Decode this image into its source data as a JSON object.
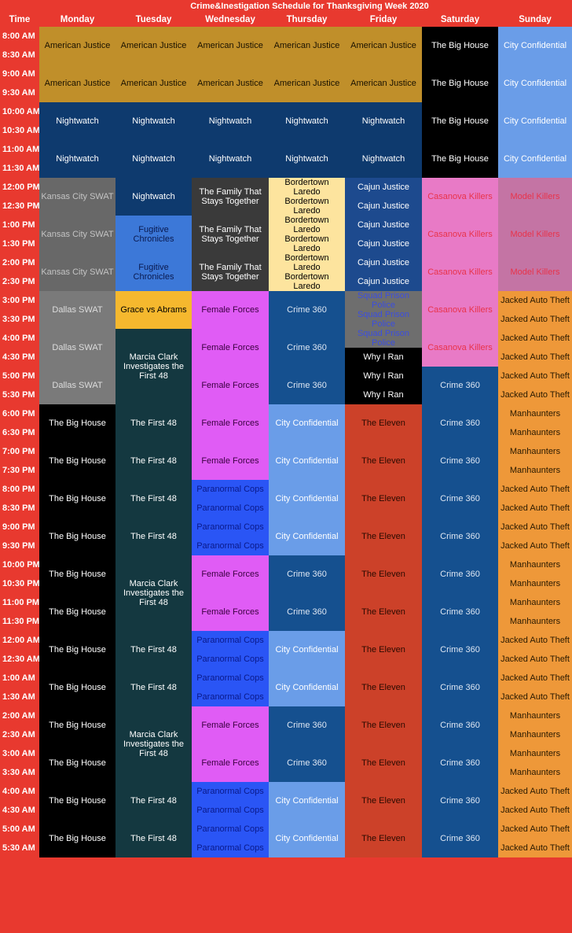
{
  "title": "Crime&Inestigation Schedule for Thanksgiving Week 2020",
  "headers": [
    "Time",
    "Monday",
    "Tuesday",
    "Wednesday",
    "Thursday",
    "Friday",
    "Saturday",
    "Sunday"
  ],
  "times": [
    "8:00 AM",
    "8:30 AM",
    "9:00 AM",
    "9:30 AM",
    "10:00 AM",
    "10:30 AM",
    "11:00 AM",
    "11:30 AM",
    "12:00 PM",
    "12:30 PM",
    "1:00 PM",
    "1:30 PM",
    "2:00 PM",
    "2:30 PM",
    "3:00 PM",
    "3:30 PM",
    "4:00 PM",
    "4:30 PM",
    "5:00 PM",
    "5:30 PM",
    "6:00 PM",
    "6:30 PM",
    "7:00 PM",
    "7:30 PM",
    "8:00 PM",
    "8:30 PM",
    "9:00 PM",
    "9:30 PM",
    "10:00 PM",
    "10:30 PM",
    "11:00 PM",
    "11:30 PM",
    "12:00 AM",
    "12:30 AM",
    "1:00 AM",
    "1:30 AM",
    "2:00 AM",
    "2:30 AM",
    "3:00 AM",
    "3:30 AM",
    "4:00 AM",
    "4:30 AM",
    "5:00 AM",
    "5:30 AM"
  ],
  "colors": {
    "header_bg": "#e8392f",
    "gold": [
      "#c08f2a",
      "#1a1200"
    ],
    "navy": [
      "#0e3a6e",
      "#ffffff"
    ],
    "kc": [
      "#686868",
      "#c4c4c4"
    ],
    "dallas": [
      "#7a7a7a",
      "#dddddd"
    ],
    "black": [
      "#000000",
      "#ffffff"
    ],
    "teal": [
      "#143840",
      "#ffffff"
    ],
    "fugitive": [
      "#3c78d8",
      "#0a1a50"
    ],
    "grace": [
      "#f5b82e",
      "#000000"
    ],
    "family": [
      "#3a3a3a",
      "#ffffff"
    ],
    "female": [
      "#e05cf5",
      "#3a0040"
    ],
    "paranormal": [
      "#2a55f5",
      "#0a1a8a"
    ],
    "bordertown": [
      "#fde49e",
      "#000000"
    ],
    "crime360": [
      "#15508f",
      "#dde6f2"
    ],
    "cityconf": [
      "#6a9de8",
      "#ffffff"
    ],
    "cajun": [
      "#1d4a8e",
      "#ffffff"
    ],
    "squad": [
      "#6e6e6e",
      "#3b4ee0"
    ],
    "why": [
      "#000000",
      "#ffffff"
    ],
    "eleven": [
      "#cc4129",
      "#2a0a00"
    ],
    "casanova": [
      "#e87ac6",
      "#e8334a"
    ],
    "model": [
      "#c474a4",
      "#e8334a"
    ],
    "jacked": [
      "#ee9839",
      "#2a1a00"
    ]
  },
  "days": [
    {
      "day": "Monday",
      "blocks": [
        {
          "c": "gold",
          "half_hours": 4,
          "shows": [
            "American Justice",
            "American Justice"
          ]
        },
        {
          "c": "navy",
          "half_hours": 4,
          "shows": [
            "Nightwatch",
            "Nightwatch"
          ]
        },
        {
          "c": "kc",
          "half_hours": 6,
          "shows": [
            "Kansas City SWAT",
            "Kansas City SWAT",
            "Kansas City SWAT"
          ]
        },
        {
          "c": "dallas",
          "half_hours": 6,
          "shows": [
            "Dallas SWAT",
            "Dallas SWAT",
            "Dallas SWAT"
          ]
        },
        {
          "c": "black",
          "half_hours": 24,
          "shows": [
            "The Big House",
            "The Big House",
            "The Big House",
            "The Big House",
            "The Big House",
            "The Big House",
            "The Big House",
            "The Big House",
            "The Big House",
            "The Big House",
            "The Big House",
            "The Big House"
          ]
        }
      ]
    },
    {
      "day": "Tuesday",
      "blocks": [
        {
          "c": "gold",
          "half_hours": 4,
          "shows": [
            "American Justice",
            "American Justice"
          ]
        },
        {
          "c": "navy",
          "half_hours": 6,
          "shows": [
            "Nightwatch",
            "Nightwatch",
            "Nightwatch"
          ]
        },
        {
          "c": "fugitive",
          "half_hours": 4,
          "shows": [
            "Fugitive Chronicles",
            "Fugitive Chronicles"
          ]
        },
        {
          "c": "grace",
          "half_hours": 2,
          "shows": [
            "Grace vs Abrams"
          ]
        },
        {
          "c": "teal",
          "half_hours": 4,
          "shows": [
            "Marcia Clark Investigates the First 48"
          ]
        },
        {
          "c": "teal",
          "half_hours": 8,
          "shows": [
            "The First 48",
            "The First 48",
            "The First 48",
            "The First 48"
          ]
        },
        {
          "c": "teal",
          "half_hours": 4,
          "shows": [
            "Marcia Clark Investigates the First 48"
          ]
        },
        {
          "c": "teal",
          "half_hours": 4,
          "shows": [
            "The First 48",
            "The First 48"
          ]
        },
        {
          "c": "teal",
          "half_hours": 4,
          "shows": [
            "Marcia Clark Investigates the First 48"
          ]
        },
        {
          "c": "teal",
          "half_hours": 4,
          "shows": [
            "The First 48",
            "The First 48"
          ]
        }
      ]
    },
    {
      "day": "Wednesday",
      "blocks": [
        {
          "c": "gold",
          "half_hours": 4,
          "shows": [
            "American Justice",
            "American Justice"
          ]
        },
        {
          "c": "navy",
          "half_hours": 4,
          "shows": [
            "Nightwatch",
            "Nightwatch"
          ]
        },
        {
          "c": "family",
          "half_hours": 6,
          "shows": [
            "The Family That Stays Together",
            "The Family That Stays Together",
            "The Family That Stays Together"
          ]
        },
        {
          "c": "female",
          "half_hours": 10,
          "shows": [
            "Female Forces",
            "Female Forces",
            "Female Forces",
            "Female Forces",
            "Female Forces"
          ]
        },
        {
          "c": "paranormal",
          "half_hours": 4,
          "shows": [
            "Paranormal Cops",
            "Paranormal Cops",
            "Paranormal Cops",
            "Paranormal Cops"
          ]
        },
        {
          "c": "female",
          "half_hours": 4,
          "shows": [
            "Female Forces",
            "Female Forces"
          ]
        },
        {
          "c": "paranormal",
          "half_hours": 4,
          "shows": [
            "Paranormal Cops",
            "Paranormal Cops",
            "Paranormal Cops",
            "Paranormal Cops"
          ]
        },
        {
          "c": "female",
          "half_hours": 4,
          "shows": [
            "Female Forces",
            "Female Forces"
          ]
        },
        {
          "c": "paranormal",
          "half_hours": 4,
          "shows": [
            "Paranormal Cops",
            "Paranormal Cops",
            "Paranormal Cops",
            "Paranormal Cops"
          ]
        }
      ]
    },
    {
      "day": "Thursday",
      "blocks": [
        {
          "c": "gold",
          "half_hours": 4,
          "shows": [
            "American Justice",
            "American Justice"
          ]
        },
        {
          "c": "navy",
          "half_hours": 4,
          "shows": [
            "Nightwatch",
            "Nightwatch"
          ]
        },
        {
          "c": "bordertown",
          "half_hours": 6,
          "shows": [
            "Bordertown Laredo",
            "Bordertown Laredo",
            "Bordertown Laredo",
            "Bordertown Laredo",
            "Bordertown Laredo",
            "Bordertown Laredo"
          ]
        },
        {
          "c": "crime360",
          "half_hours": 6,
          "shows": [
            "Crime 360",
            "Crime 360",
            "Crime 360"
          ]
        },
        {
          "c": "cityconf",
          "half_hours": 8,
          "shows": [
            "City Confidential",
            "City Confidential",
            "City Confidential",
            "City Confidential"
          ]
        },
        {
          "c": "crime360",
          "half_hours": 4,
          "shows": [
            "Crime 360",
            "Crime 360"
          ]
        },
        {
          "c": "cityconf",
          "half_hours": 4,
          "shows": [
            "City Confidential",
            "City Confidential"
          ]
        },
        {
          "c": "crime360",
          "half_hours": 4,
          "shows": [
            "Crime 360",
            "Crime 360"
          ]
        },
        {
          "c": "cityconf",
          "half_hours": 4,
          "shows": [
            "City Confidential",
            "City Confidential"
          ]
        }
      ]
    },
    {
      "day": "Friday",
      "blocks": [
        {
          "c": "gold",
          "half_hours": 4,
          "shows": [
            "American Justice",
            "American Justice"
          ]
        },
        {
          "c": "navy",
          "half_hours": 4,
          "shows": [
            "Nightwatch",
            "Nightwatch"
          ]
        },
        {
          "c": "cajun",
          "half_hours": 6,
          "shows": [
            "Cajun Justice",
            "Cajun Justice",
            "Cajun Justice",
            "Cajun Justice",
            "Cajun Justice",
            "Cajun Justice"
          ]
        },
        {
          "c": "squad",
          "half_hours": 3,
          "shows": [
            "Squad Prison Police",
            "Squad Prison Police",
            "Squad Prison Police"
          ]
        },
        {
          "c": "why",
          "half_hours": 3,
          "shows": [
            "Why I Ran",
            "Why I Ran",
            "Why I Ran"
          ]
        },
        {
          "c": "eleven",
          "half_hours": 24,
          "shows": [
            "The Eleven",
            "The Eleven",
            "The Eleven",
            "The Eleven",
            "The Eleven",
            "The Eleven",
            "The Eleven",
            "The Eleven",
            "The Eleven",
            "The Eleven",
            "The Eleven",
            "The Eleven"
          ]
        }
      ]
    },
    {
      "day": "Saturday",
      "blocks": [
        {
          "c": "black",
          "half_hours": 8,
          "shows": [
            "The Big House",
            "The Big House",
            "The Big House",
            "The Big House"
          ]
        },
        {
          "c": "casanova",
          "half_hours": 10,
          "shows": [
            "Casanova Killers",
            "Casanova Killers",
            "Casanova Killers",
            "Casanova Killers",
            "Casanova Killers"
          ]
        },
        {
          "c": "crime360",
          "half_hours": 26,
          "shows": [
            "Crime 360",
            "Crime 360",
            "Crime 360",
            "Crime 360",
            "Crime 360",
            "Crime 360",
            "Crime 360",
            "Crime 360",
            "Crime 360",
            "Crime 360",
            "Crime 360",
            "Crime 360",
            "Crime 360"
          ]
        }
      ]
    },
    {
      "day": "Sunday",
      "blocks": [
        {
          "c": "cityconf",
          "half_hours": 8,
          "shows": [
            "City Confidential",
            "City Confidential",
            "City Confidential",
            "City Confidential"
          ]
        },
        {
          "c": "model",
          "half_hours": 6,
          "shows": [
            "Model Killers",
            "Model Killers",
            "Model Killers"
          ]
        },
        {
          "c": "jacked",
          "half_hours": 6,
          "shows": [
            "Jacked Auto Theft",
            "Jacked Auto Theft",
            "Jacked Auto Theft",
            "Jacked Auto Theft",
            "Jacked Auto Theft",
            "Jacked Auto Theft"
          ]
        },
        {
          "c": "jacked",
          "half_hours": 4,
          "shows": [
            "Manhaunters",
            "Manhaunters",
            "Manhaunters",
            "Manhaunters"
          ]
        },
        {
          "c": "jacked",
          "half_hours": 4,
          "shows": [
            "Jacked Auto Theft",
            "Jacked Auto Theft",
            "Jacked Auto Theft",
            "Jacked Auto Theft"
          ]
        },
        {
          "c": "jacked",
          "half_hours": 4,
          "shows": [
            "Manhaunters",
            "Manhaunters",
            "Manhaunters",
            "Manhaunters"
          ]
        },
        {
          "c": "jacked",
          "half_hours": 4,
          "shows": [
            "Jacked Auto Theft",
            "Jacked Auto Theft",
            "Jacked Auto Theft",
            "Jacked Auto Theft"
          ]
        },
        {
          "c": "jacked",
          "half_hours": 4,
          "shows": [
            "Manhaunters",
            "Manhaunters",
            "Manhaunters",
            "Manhaunters"
          ]
        },
        {
          "c": "jacked",
          "half_hours": 4,
          "shows": [
            "Jacked Auto Theft",
            "Jacked Auto Theft",
            "Jacked Auto Theft",
            "Jacked Auto Theft"
          ]
        }
      ]
    }
  ]
}
